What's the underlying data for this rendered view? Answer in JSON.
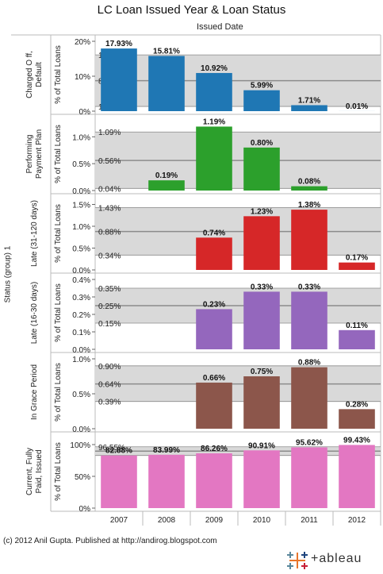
{
  "title": "LC Loan Issued Year & Loan Status",
  "column_header": "Issued Date",
  "row_header": "Status (group) 1",
  "footer": "(c) 2012 Anil Gupta. Published at http://andirog.blogspot.com",
  "logo_text": "+ableau",
  "colors": {
    "band": "#d9d9d9",
    "refline": "#8c8c8c",
    "border": "#bbbbbb",
    "charged_off": "#1f77b4",
    "performing": "#2ca02c",
    "late_long": "#d62728",
    "late_short": "#9467bd",
    "grace": "#8c564b",
    "current": "#e377c2"
  },
  "chart_data": {
    "type": "bar",
    "categories": [
      "2007",
      "2008",
      "2009",
      "2010",
      "2011",
      "2012"
    ],
    "axis_label": "% of Total Loans",
    "panels": [
      {
        "status": "Charged Off, Default",
        "status_lines": [
          "Charged O ff,",
          "Default"
        ],
        "color_key": "charged_off",
        "values": [
          17.93,
          15.81,
          10.92,
          5.99,
          1.71,
          0.01
        ],
        "value_labels": [
          "17.93%",
          "15.81%",
          "10.92%",
          "5.99%",
          "1.71%",
          "0.01%"
        ],
        "ylim": [
          0,
          20
        ],
        "ticks": [
          {
            "v": 0,
            "t": "0%"
          },
          {
            "v": 10,
            "t": "10%"
          },
          {
            "v": 20,
            "t": "20%"
          }
        ],
        "band": [
          1.35,
          16.11
        ],
        "ref_labels": [
          {
            "v": 16.11,
            "t": "16.11%"
          },
          {
            "v": 8.73,
            "t": "8.73%"
          },
          {
            "v": 1.35,
            "t": "1.35%"
          }
        ]
      },
      {
        "status": "Performing Payment Plan",
        "status_lines": [
          "Performing",
          "Payment Plan"
        ],
        "color_key": "performing",
        "values": [
          null,
          0.19,
          1.19,
          0.8,
          0.08,
          null
        ],
        "value_labels": [
          "",
          "0.19%",
          "1.19%",
          "0.80%",
          "0.08%",
          ""
        ],
        "ylim": [
          0,
          1.3
        ],
        "ticks": [
          {
            "v": 0,
            "t": "0.0%"
          },
          {
            "v": 0.5,
            "t": "0.5%"
          },
          {
            "v": 1.0,
            "t": "1.0%"
          }
        ],
        "band": [
          0.04,
          1.09
        ],
        "ref_labels": [
          {
            "v": 1.09,
            "t": "1.09%"
          },
          {
            "v": 0.56,
            "t": "0.56%"
          },
          {
            "v": 0.04,
            "t": "0.04%"
          }
        ]
      },
      {
        "status": "Late (31-120 days)",
        "status_lines": [
          "Late (31-120 days)"
        ],
        "color_key": "late_long",
        "values": [
          null,
          null,
          0.74,
          1.23,
          1.38,
          0.17
        ],
        "value_labels": [
          "",
          "",
          "0.74%",
          "1.23%",
          "1.38%",
          "0.17%"
        ],
        "ylim": [
          0,
          1.6
        ],
        "ticks": [
          {
            "v": 0,
            "t": "0.0%"
          },
          {
            "v": 0.5,
            "t": "0.5%"
          },
          {
            "v": 1.0,
            "t": "1.0%"
          },
          {
            "v": 1.5,
            "t": "1.5%"
          }
        ],
        "band": [
          0.34,
          1.43
        ],
        "ref_labels": [
          {
            "v": 1.43,
            "t": "1.43%"
          },
          {
            "v": 0.88,
            "t": "0.88%"
          },
          {
            "v": 0.34,
            "t": "0.34%"
          }
        ]
      },
      {
        "status": "Late (16-30 days)",
        "status_lines": [
          "Late (16-30 days)"
        ],
        "color_key": "late_short",
        "values": [
          null,
          null,
          0.23,
          0.33,
          0.33,
          0.11
        ],
        "value_labels": [
          "",
          "",
          "0.23%",
          "0.33%",
          "0.33%",
          "0.11%"
        ],
        "ylim": [
          0,
          0.4
        ],
        "ticks": [
          {
            "v": 0,
            "t": "0.0%"
          },
          {
            "v": 0.1,
            "t": "0.1%"
          },
          {
            "v": 0.2,
            "t": "0.2%"
          },
          {
            "v": 0.3,
            "t": "0.3%"
          },
          {
            "v": 0.4,
            "t": "0.4%"
          }
        ],
        "band": [
          0.15,
          0.35
        ],
        "ref_labels": [
          {
            "v": 0.35,
            "t": "0.35%"
          },
          {
            "v": 0.25,
            "t": "0.25%"
          },
          {
            "v": 0.15,
            "t": "0.15%"
          }
        ]
      },
      {
        "status": "In Grace Period",
        "status_lines": [
          "In Grace Period"
        ],
        "color_key": "grace",
        "values": [
          null,
          null,
          0.66,
          0.75,
          0.88,
          0.28
        ],
        "value_labels": [
          "",
          "",
          "0.66%",
          "0.75%",
          "0.88%",
          "0.28%"
        ],
        "ylim": [
          0,
          1.0
        ],
        "ticks": [
          {
            "v": 0,
            "t": "0.0%"
          },
          {
            "v": 0.5,
            "t": "0.5%"
          },
          {
            "v": 1.0,
            "t": "1.0%"
          }
        ],
        "band": [
          0.39,
          0.9
        ],
        "ref_labels": [
          {
            "v": 0.9,
            "t": "0.90%"
          },
          {
            "v": 0.64,
            "t": "0.64%"
          },
          {
            "v": 0.39,
            "t": "0.39%"
          }
        ]
      },
      {
        "status": "Current, Fully Paid, Issued",
        "status_lines": [
          "Current, Fully",
          "Paid, Issued"
        ],
        "color_key": "current",
        "values": [
          82.88,
          83.99,
          86.26,
          90.91,
          95.62,
          99.43
        ],
        "value_labels": [
          "82.88%",
          "83.99%",
          "86.26%",
          "90.91%",
          "95.62%",
          "99.43%"
        ],
        "ylim": [
          0,
          110
        ],
        "ticks": [
          {
            "v": 0,
            "t": "0%"
          },
          {
            "v": 50,
            "t": "50%"
          },
          {
            "v": 100,
            "t": "100%"
          }
        ],
        "band": [
          82.88,
          96.55
        ],
        "ref_labels": [
          {
            "v": 96.55,
            "t": "96.55%"
          },
          {
            "v": 89.72,
            "t": ""
          },
          {
            "v": 82.88,
            "t": ""
          }
        ]
      }
    ]
  }
}
